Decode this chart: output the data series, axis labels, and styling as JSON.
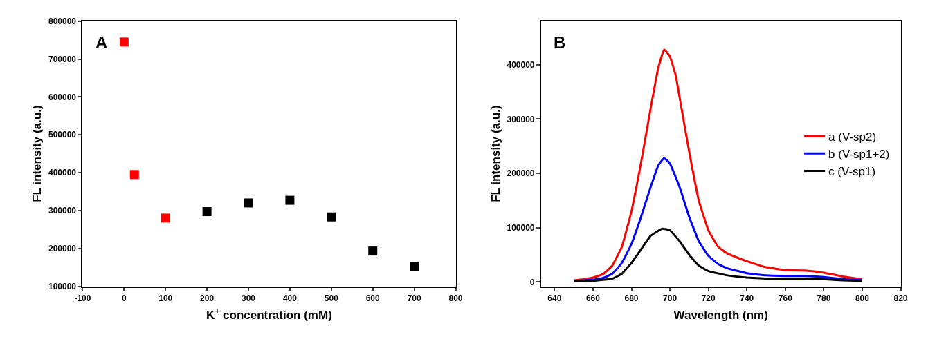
{
  "chart_data": [
    {
      "type": "scatter",
      "annotations": [
        "A"
      ],
      "xlabel": "K$^{+}$ concentration (mM)",
      "ylabel": "FL intensity (a.u.)",
      "xlim": [
        -100,
        800
      ],
      "xticks": [
        -100,
        0,
        100,
        200,
        300,
        400,
        500,
        600,
        700,
        800
      ],
      "ylim": [
        100000,
        800000
      ],
      "yticks": [
        100000,
        200000,
        300000,
        400000,
        500000,
        600000,
        700000,
        800000
      ],
      "marker": "square",
      "legend": false,
      "series": [
        {
          "color": "#ff0000",
          "x": [
            0,
            25,
            100
          ],
          "values": [
            745000,
            395000,
            280000
          ]
        },
        {
          "color": "#000000",
          "x": [
            200,
            300,
            400,
            500,
            600,
            700
          ],
          "values": [
            297000,
            320000,
            327000,
            283000,
            193000,
            153000
          ]
        }
      ]
    },
    {
      "type": "line",
      "annotations": [
        "B"
      ],
      "xlabel": "Wavelength (nm)",
      "ylabel": "FL intensity (a.u.)",
      "xlim": [
        633,
        820
      ],
      "xticks": [
        640,
        660,
        680,
        700,
        720,
        740,
        760,
        780,
        800,
        820
      ],
      "ylim": [
        -8000,
        480000
      ],
      "yticks": [
        0,
        100000,
        200000,
        300000,
        400000
      ],
      "marker": "none",
      "line_style": "solid",
      "legend": "right",
      "series": [
        {
          "name": "a (V-sp2)",
          "color": "#ff0000",
          "x": [
            650,
            655,
            660,
            665,
            670,
            675,
            680,
            685,
            690,
            694,
            697,
            700,
            703,
            706,
            710,
            715,
            720,
            725,
            730,
            740,
            750,
            760,
            770,
            780,
            790,
            800
          ],
          "values": [
            3000,
            5000,
            8000,
            14000,
            30000,
            65000,
            130000,
            220000,
            320000,
            395000,
            428000,
            415000,
            380000,
            320000,
            240000,
            150000,
            95000,
            65000,
            52000,
            38000,
            27000,
            22000,
            21000,
            17000,
            10000,
            5000
          ]
        },
        {
          "name": "b (V-sp1+2)",
          "color": "#0000ff",
          "x": [
            650,
            660,
            665,
            670,
            675,
            680,
            685,
            690,
            694,
            697,
            700,
            705,
            710,
            715,
            720,
            725,
            730,
            740,
            750,
            760,
            770,
            780,
            790,
            800
          ],
          "values": [
            2000,
            4000,
            7000,
            15000,
            35000,
            70000,
            120000,
            175000,
            215000,
            228000,
            218000,
            175000,
            120000,
            75000,
            48000,
            33000,
            25000,
            16000,
            12000,
            11000,
            11000,
            9000,
            5000,
            3000
          ]
        },
        {
          "name": "c (V-sp1)",
          "color": "#000000",
          "x": [
            650,
            660,
            670,
            675,
            680,
            685,
            690,
            696,
            700,
            705,
            710,
            715,
            720,
            730,
            740,
            750,
            760,
            770,
            780,
            790,
            800
          ],
          "values": [
            1000,
            2000,
            6000,
            15000,
            35000,
            60000,
            85000,
            98000,
            95000,
            75000,
            50000,
            30000,
            20000,
            12000,
            8000,
            6000,
            6000,
            6000,
            5000,
            3000,
            2000
          ]
        }
      ]
    }
  ]
}
